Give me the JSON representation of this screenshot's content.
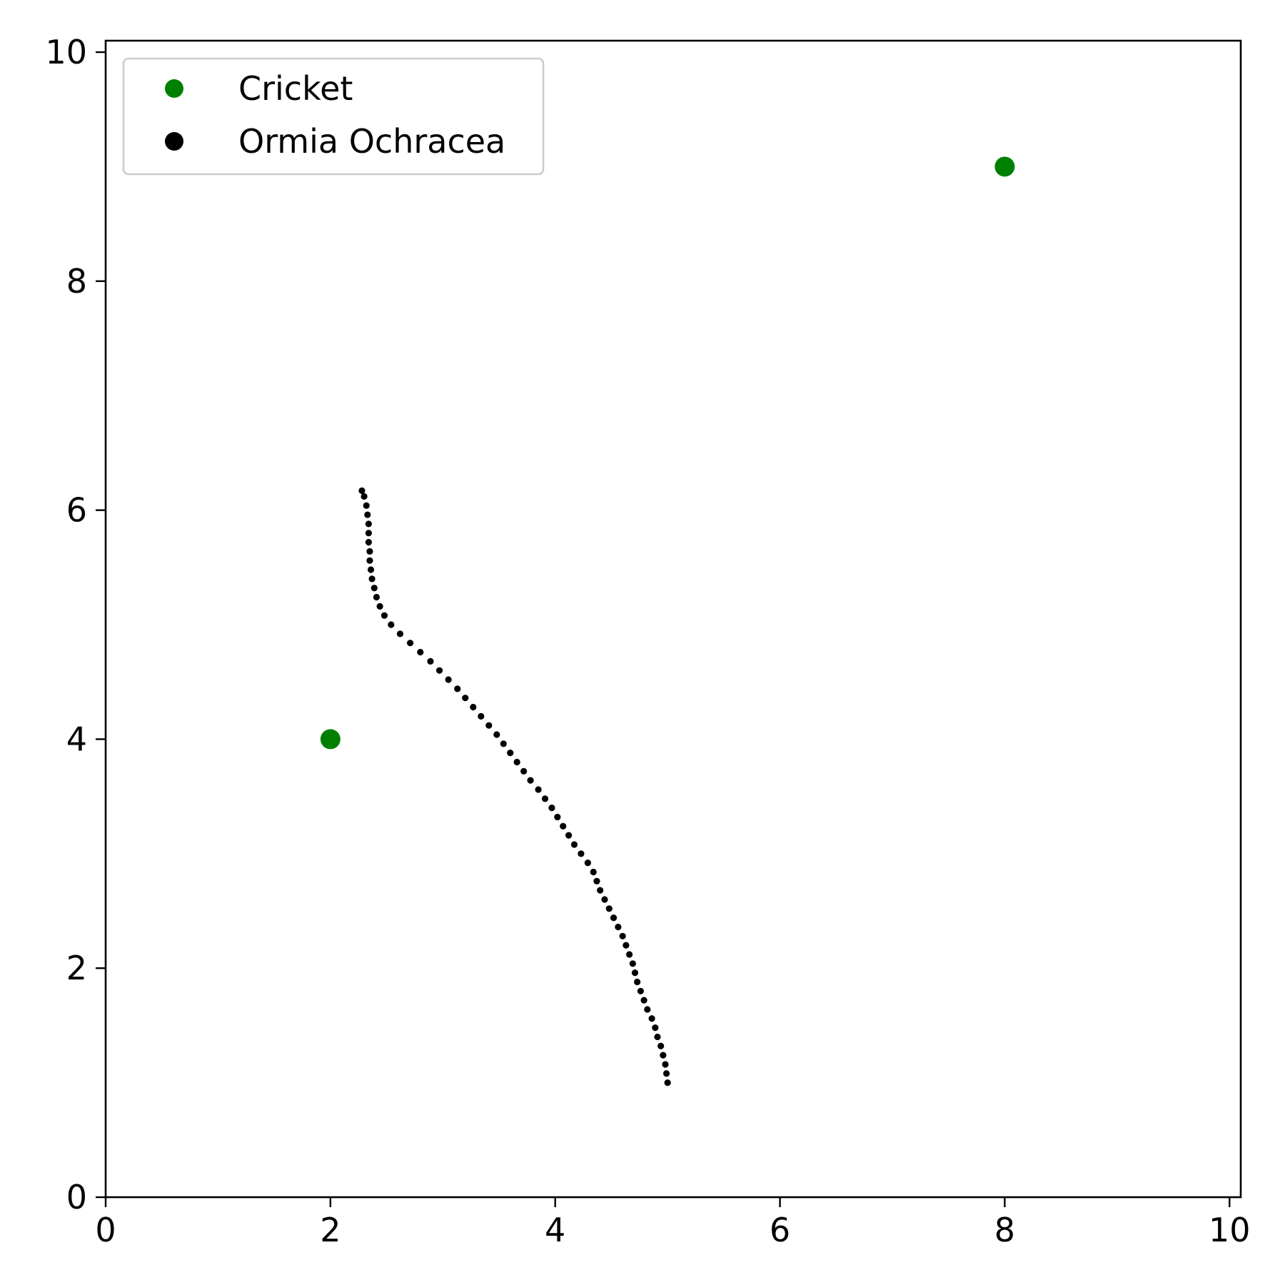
{
  "chart_data": {
    "type": "scatter",
    "xlim": [
      0,
      10.1
    ],
    "ylim": [
      0,
      10.1
    ],
    "x_ticks": [
      "0",
      "2",
      "4",
      "6",
      "8",
      "10"
    ],
    "y_ticks": [
      "0",
      "2",
      "4",
      "6",
      "8",
      "10"
    ],
    "grid": false,
    "legend_position": "top-left",
    "series": [
      {
        "name": "Cricket",
        "color": "#008000",
        "marker": "large-dot",
        "points": [
          [
            2.0,
            4.0
          ],
          [
            8.0,
            9.0
          ]
        ]
      },
      {
        "name": "Ormia Ochracea",
        "color": "#000000",
        "marker": "small-dot",
        "points": [
          [
            5.0,
            1.0
          ],
          [
            4.99,
            1.08
          ],
          [
            4.98,
            1.16
          ],
          [
            4.96,
            1.24
          ],
          [
            4.94,
            1.32
          ],
          [
            4.91,
            1.4
          ],
          [
            4.89,
            1.48
          ],
          [
            4.86,
            1.56
          ],
          [
            4.82,
            1.64
          ],
          [
            4.79,
            1.72
          ],
          [
            4.76,
            1.8
          ],
          [
            4.73,
            1.88
          ],
          [
            4.71,
            1.96
          ],
          [
            4.69,
            2.04
          ],
          [
            4.66,
            2.12
          ],
          [
            4.63,
            2.2
          ],
          [
            4.6,
            2.28
          ],
          [
            4.56,
            2.36
          ],
          [
            4.52,
            2.44
          ],
          [
            4.48,
            2.52
          ],
          [
            4.44,
            2.6
          ],
          [
            4.4,
            2.68
          ],
          [
            4.37,
            2.76
          ],
          [
            4.34,
            2.84
          ],
          [
            4.29,
            2.92
          ],
          [
            4.23,
            3.0
          ],
          [
            4.17,
            3.08
          ],
          [
            4.12,
            3.16
          ],
          [
            4.07,
            3.24
          ],
          [
            4.02,
            3.32
          ],
          [
            3.97,
            3.4
          ],
          [
            3.91,
            3.48
          ],
          [
            3.85,
            3.56
          ],
          [
            3.78,
            3.64
          ],
          [
            3.72,
            3.72
          ],
          [
            3.66,
            3.8
          ],
          [
            3.6,
            3.88
          ],
          [
            3.54,
            3.96
          ],
          [
            3.48,
            4.04
          ],
          [
            3.41,
            4.12
          ],
          [
            3.34,
            4.2
          ],
          [
            3.27,
            4.28
          ],
          [
            3.2,
            4.36
          ],
          [
            3.13,
            4.44
          ],
          [
            3.05,
            4.52
          ],
          [
            2.97,
            4.6
          ],
          [
            2.89,
            4.68
          ],
          [
            2.8,
            4.76
          ],
          [
            2.71,
            4.84
          ],
          [
            2.62,
            4.92
          ],
          [
            2.54,
            5.0
          ],
          [
            2.48,
            5.08
          ],
          [
            2.44,
            5.16
          ],
          [
            2.41,
            5.24
          ],
          [
            2.39,
            5.32
          ],
          [
            2.37,
            5.4
          ],
          [
            2.36,
            5.48
          ],
          [
            2.35,
            5.56
          ],
          [
            2.35,
            5.64
          ],
          [
            2.34,
            5.72
          ],
          [
            2.34,
            5.8
          ],
          [
            2.34,
            5.88
          ],
          [
            2.33,
            5.96
          ],
          [
            2.32,
            6.04
          ],
          [
            2.3,
            6.12
          ],
          [
            2.28,
            6.17
          ]
        ]
      }
    ]
  }
}
